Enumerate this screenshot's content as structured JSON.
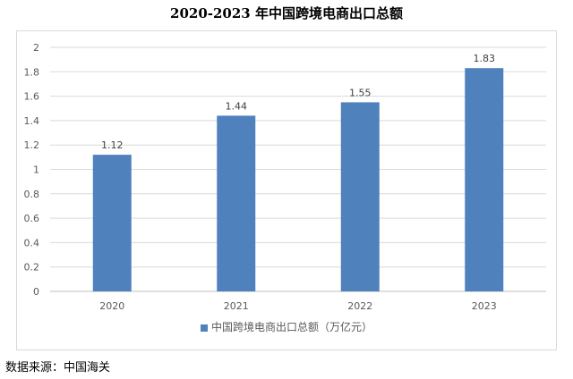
{
  "chart_data": {
    "type": "bar",
    "title": "2020-2023 年中国跨境电商出口总额",
    "categories": [
      "2020",
      "2021",
      "2022",
      "2023"
    ],
    "series": [
      {
        "name": "中国跨境电商出口总额（万亿元）",
        "values": [
          1.12,
          1.44,
          1.55,
          1.83
        ]
      }
    ],
    "data_labels": [
      "1.12",
      "1.44",
      "1.55",
      "1.83"
    ],
    "y_ticks": [
      "0",
      "0.2",
      "0.4",
      "0.6",
      "0.8",
      "1",
      "1.2",
      "1.4",
      "1.6",
      "1.8",
      "2"
    ],
    "ylim": [
      0,
      2
    ],
    "grid": true,
    "legend_position": "bottom",
    "bar_color": "#4f81bd"
  },
  "source": "数据来源：中国海关"
}
